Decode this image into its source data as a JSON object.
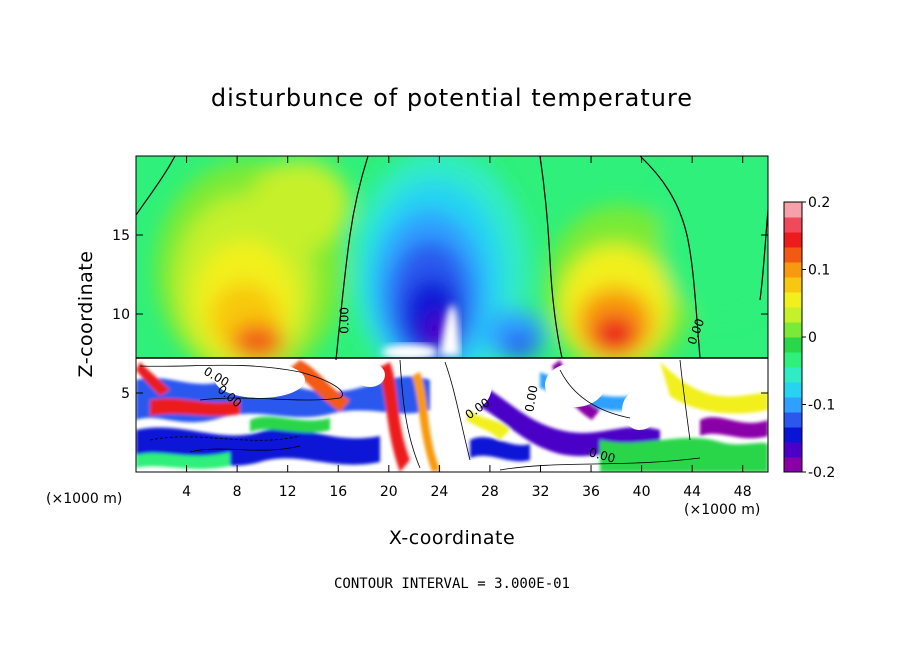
{
  "chart_data": {
    "type": "heatmap",
    "title": "disturbunce of potential temperature",
    "xlabel": "X-coordinate",
    "ylabel": "Z-coordinate",
    "x_unit_left": "(×1000 m)",
    "x_unit_right": "(×1000 m)",
    "xlim": [
      0,
      50
    ],
    "ylim": [
      0,
      20
    ],
    "x_ticks": [
      "4",
      "8",
      "12",
      "16",
      "20",
      "24",
      "28",
      "32",
      "36",
      "40",
      "44",
      "48"
    ],
    "x_tick_values": [
      4,
      8,
      12,
      16,
      20,
      24,
      28,
      32,
      36,
      40,
      44,
      48
    ],
    "y_ticks": [
      "5",
      "10",
      "15"
    ],
    "y_tick_values": [
      5,
      10,
      15
    ],
    "colorbar": {
      "range": [
        -0.2,
        0.2
      ],
      "tick_labels": [
        "0.2",
        "0.1",
        "0",
        "-0.1",
        "-0.2"
      ],
      "tick_values": [
        0.2,
        0.1,
        0,
        -0.1,
        -0.2
      ],
      "colors": [
        "#8a00a8",
        "#4b00c8",
        "#0a14d6",
        "#2a58ee",
        "#2fa0ff",
        "#26d4f2",
        "#30ecc4",
        "#2ef07a",
        "#2ad64a",
        "#7aea36",
        "#c6f02a",
        "#f2f01c",
        "#f8c810",
        "#f89a10",
        "#f25a14",
        "#ec1c1c",
        "#f04a5a",
        "#f5a0aa"
      ]
    },
    "contour_labels": [
      "0.00",
      "0.00",
      "0.00",
      "0.00",
      "0.00",
      "0.00",
      "0.00"
    ],
    "note": "CONTOUR INTERVAL = 3.000E-01"
  }
}
